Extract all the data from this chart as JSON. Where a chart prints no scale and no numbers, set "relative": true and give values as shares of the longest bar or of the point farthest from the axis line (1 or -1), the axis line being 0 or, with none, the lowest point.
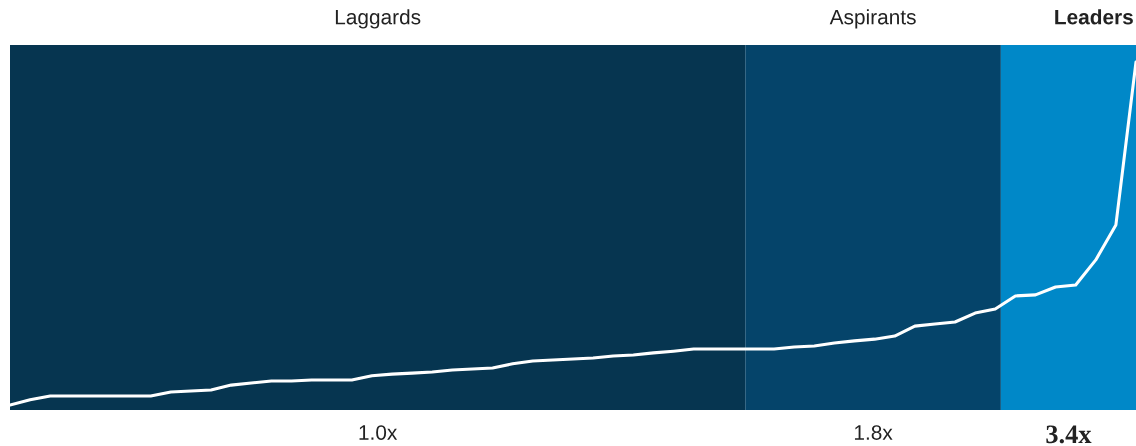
{
  "chart_data": {
    "type": "line",
    "relative": true,
    "categories": [
      null,
      null,
      null,
      null,
      null,
      null,
      null,
      null,
      null,
      null,
      null,
      null,
      null,
      null,
      null,
      null,
      null,
      null,
      null,
      null,
      null,
      null,
      null,
      null,
      null,
      null,
      null,
      null,
      null,
      null,
      null,
      null,
      null,
      null,
      null,
      null,
      null,
      null,
      null,
      null,
      null,
      null,
      null,
      null,
      null,
      null,
      null,
      null,
      null,
      null,
      null,
      null,
      null,
      null,
      null,
      null,
      null
    ],
    "series": [
      {
        "color": "#ffffff",
        "values": [
          0,
          0.015,
          0.026,
          0.026,
          0.026,
          0.026,
          0.026,
          0.026,
          0.038,
          0.041,
          0.044,
          0.058,
          0.064,
          0.07,
          0.07,
          0.073,
          0.073,
          0.073,
          0.085,
          0.09,
          0.093,
          0.096,
          0.102,
          0.105,
          0.108,
          0.12,
          0.128,
          0.131,
          0.134,
          0.137,
          0.143,
          0.146,
          0.152,
          0.157,
          0.163,
          0.163,
          0.163,
          0.163,
          0.163,
          0.169,
          0.172,
          0.181,
          0.187,
          0.192,
          0.201,
          0.23,
          0.236,
          0.242,
          0.268,
          0.28,
          0.318,
          0.321,
          0.344,
          0.35,
          0.423,
          0.525,
          1
        ]
      }
    ],
    "annotations": [
      "Laggards",
      "Aspirants",
      "Leaders",
      "1.0x",
      "1.8x",
      "3.4x"
    ]
  }
}
